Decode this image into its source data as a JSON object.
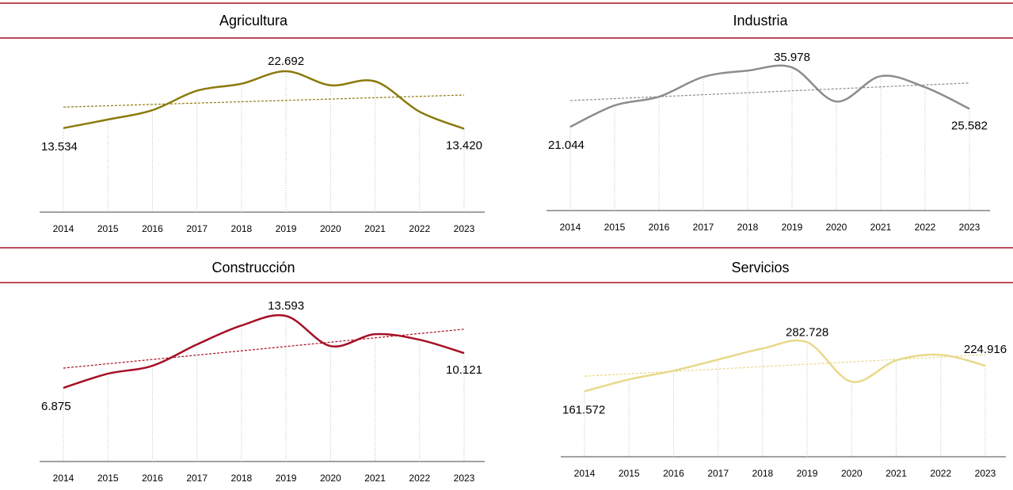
{
  "chart_data": [
    {
      "type": "line",
      "title": "Agricultura",
      "color": "#8b7a0c",
      "categories": [
        "2014",
        "2015",
        "2016",
        "2017",
        "2018",
        "2019",
        "2020",
        "2021",
        "2022",
        "2023"
      ],
      "values": [
        13.534,
        14.91,
        16.42,
        19.55,
        20.68,
        22.692,
        20.43,
        21.06,
        16.17,
        13.42
      ],
      "value_labels": [
        "13.534",
        null,
        null,
        null,
        null,
        "22.692",
        null,
        null,
        null,
        "13.420"
      ],
      "ylim": [
        0,
        26
      ]
    },
    {
      "type": "line",
      "title": "Industria",
      "color": "#8c8c8c",
      "categories": [
        "2014",
        "2015",
        "2016",
        "2017",
        "2018",
        "2019",
        "2020",
        "2021",
        "2022",
        "2023"
      ],
      "values": [
        21.044,
        26.42,
        28.61,
        33.59,
        35.18,
        35.978,
        27.41,
        33.79,
        31.0,
        25.582
      ],
      "value_labels": [
        "21.044",
        null,
        null,
        null,
        null,
        "35.978",
        null,
        null,
        null,
        "25.582"
      ],
      "ylim": [
        0,
        39
      ]
    },
    {
      "type": "line",
      "title": "Construcción",
      "color": "#a50f24",
      "categories": [
        "2014",
        "2015",
        "2016",
        "2017",
        "2018",
        "2019",
        "2020",
        "2021",
        "2022",
        "2023"
      ],
      "values": [
        6.875,
        8.2,
        8.94,
        10.93,
        12.7,
        13.593,
        10.78,
        11.89,
        11.37,
        10.121
      ],
      "value_labels": [
        "6.875",
        null,
        null,
        null,
        null,
        "13.593",
        null,
        null,
        null,
        "10.121"
      ],
      "ylim": [
        0,
        15.6
      ]
    },
    {
      "type": "line",
      "title": "Servicios",
      "color": "#e8d98a",
      "categories": [
        "2014",
        "2015",
        "2016",
        "2017",
        "2018",
        "2019",
        "2020",
        "2021",
        "2022",
        "2023"
      ],
      "values": [
        161.572,
        190.9,
        212.4,
        239.9,
        267.3,
        282.728,
        185.0,
        237.9,
        251.7,
        224.916
      ],
      "value_labels": [
        "161.572",
        null,
        null,
        null,
        null,
        "282.728",
        null,
        null,
        null,
        "224.916"
      ],
      "ylim": [
        0,
        385
      ]
    }
  ]
}
